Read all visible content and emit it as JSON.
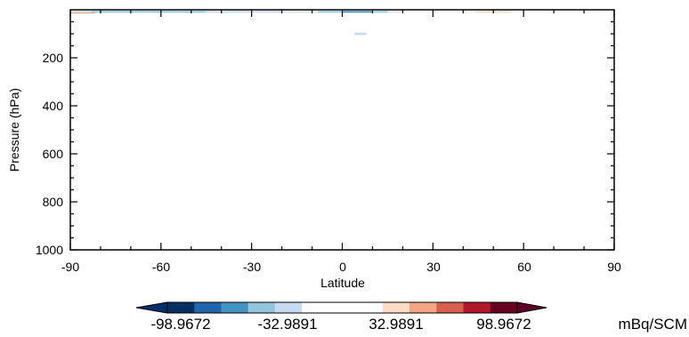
{
  "chart_data": {
    "type": "heatmap",
    "xlabel": "Latitude",
    "ylabel": "Pressure (hPa)",
    "xlim": [
      -90,
      90
    ],
    "ylim": [
      1000,
      0
    ],
    "y_scale": "linear, inverted (pressure increases downward)",
    "xticks": [
      "-90",
      "-60",
      "-30",
      "0",
      "30",
      "60",
      "90"
    ],
    "yticks": [
      "200",
      "400",
      "600",
      "800",
      "1000"
    ],
    "grid": false,
    "cells": [
      {
        "lat0": -90,
        "lat1": -83,
        "p0": 5,
        "p1": 12,
        "color": "#c6dbef"
      },
      {
        "lat0": -90,
        "lat1": -82,
        "p0": 12,
        "p1": 16,
        "color": "#f4a582"
      },
      {
        "lat0": -83,
        "lat1": -45,
        "p0": 5,
        "p1": 12,
        "color": "#92c5de"
      },
      {
        "lat0": -45,
        "lat1": -20,
        "p0": 5,
        "p1": 12,
        "color": "#c6dbef"
      },
      {
        "lat0": -20,
        "lat1": -8,
        "p0": 5,
        "p1": 12,
        "color": "#d1e5f0"
      },
      {
        "lat0": -8,
        "lat1": 0,
        "p0": 5,
        "p1": 12,
        "color": "#92c5de"
      },
      {
        "lat0": 0,
        "lat1": 10,
        "p0": 5,
        "p1": 12,
        "color": "#4393c3"
      },
      {
        "lat0": 10,
        "lat1": 15,
        "p0": 5,
        "p1": 12,
        "color": "#92c5de"
      },
      {
        "lat0": 15,
        "lat1": 19,
        "p0": 5,
        "p1": 12,
        "color": "#d1e5f0"
      },
      {
        "lat0": 44,
        "lat1": 56,
        "p0": 5,
        "p1": 12,
        "color": "#fddbc7"
      },
      {
        "lat0": 4,
        "lat1": 8,
        "p0": 95,
        "p1": 105,
        "color": "#c6dbef"
      }
    ],
    "colorbar": {
      "labels": [
        "-98.9672",
        "-32.9891",
        "32.9891",
        "98.9672"
      ],
      "unit": "mBq/SCM",
      "colors": [
        "#053061",
        "#2166ac",
        "#4393c3",
        "#92c5de",
        "#c6dbef",
        "#ffffff",
        "#ffffff",
        "#ffffff",
        "#fddbc7",
        "#f4a582",
        "#d6604d",
        "#b2182b",
        "#67001f"
      ],
      "under_color": "#023066",
      "over_color": "#5c0026"
    }
  }
}
